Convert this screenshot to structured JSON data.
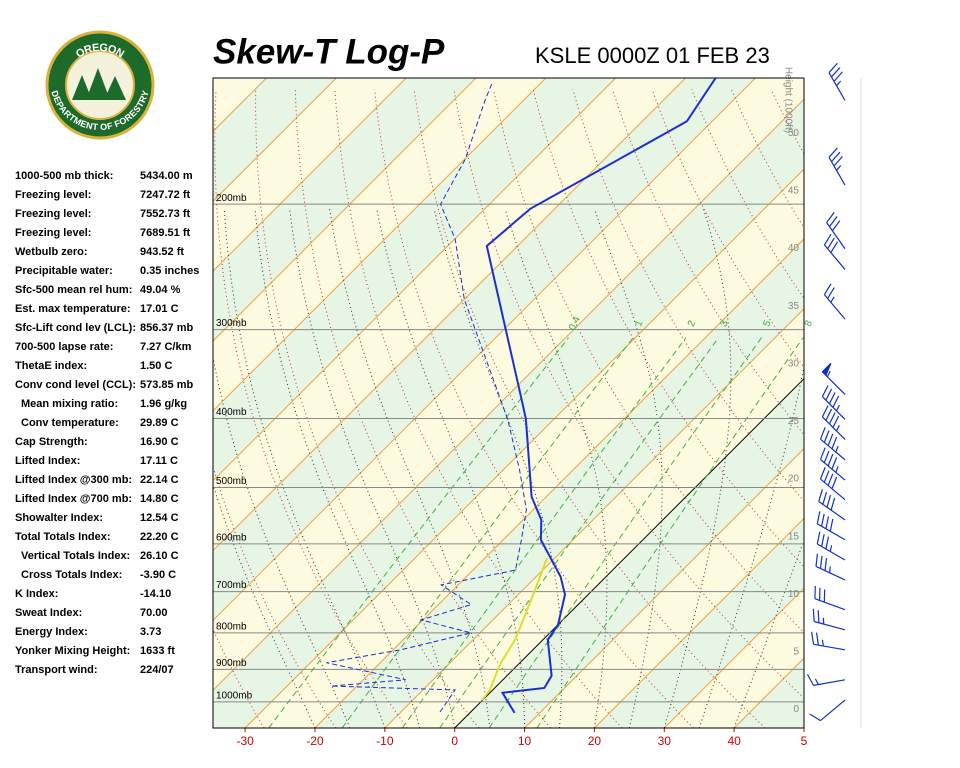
{
  "logo": {
    "top": "OREGON",
    "bottom": "DEPARTMENT OF FORESTRY"
  },
  "stats": [
    {
      "label": "1000-500 mb thick:",
      "value": "5434.00 m"
    },
    {
      "label": "Freezing level:",
      "value": "7247.72 ft"
    },
    {
      "label": "Freezing level:",
      "value": "7552.73 ft"
    },
    {
      "label": "Freezing level:",
      "value": "7689.51 ft"
    },
    {
      "label": "Wetbulb zero:",
      "value": "943.52 ft"
    },
    {
      "label": "Precipitable water:",
      "value": "0.35 inches"
    },
    {
      "label": "Sfc-500 mean rel hum:",
      "value": "49.04 %"
    },
    {
      "label": "Est. max temperature:",
      "value": "17.01 C"
    },
    {
      "label": "Sfc-Lift cond lev (LCL):",
      "value": "856.37 mb"
    },
    {
      "label": "700-500 lapse rate:",
      "value": "7.27 C/km"
    },
    {
      "label": "ThetaE index:",
      "value": "1.50 C"
    },
    {
      "label": "Conv cond level (CCL):",
      "value": "573.85 mb"
    },
    {
      "label": "Mean mixing ratio:",
      "value": "1.96 g/kg",
      "indent": true
    },
    {
      "label": "Conv temperature:",
      "value": "29.89 C",
      "indent": true
    },
    {
      "label": "Cap Strength:",
      "value": "16.90 C"
    },
    {
      "label": "Lifted Index:",
      "value": "17.11 C"
    },
    {
      "label": "Lifted Index @300 mb:",
      "value": "22.14 C"
    },
    {
      "label": "Lifted Index @700 mb:",
      "value": "14.80 C"
    },
    {
      "label": "Showalter Index:",
      "value": "12.54 C"
    },
    {
      "label": "Total Totals Index:",
      "value": "22.20 C"
    },
    {
      "label": "Vertical Totals Index:",
      "value": "26.10 C",
      "indent": true
    },
    {
      "label": "Cross Totals Index:",
      "value": "-3.90 C",
      "indent": true
    },
    {
      "label": "K Index:",
      "value": "-14.10"
    },
    {
      "label": "Sweat Index:",
      "value": "70.00"
    },
    {
      "label": "Energy Index:",
      "value": "3.73"
    },
    {
      "label": "Yonker Mixing Height:",
      "value": "1633 ft"
    },
    {
      "label": "Transport wind:",
      "value": "224/07"
    }
  ],
  "chart_data": {
    "type": "skewt",
    "title": "Skew-T Log-P",
    "subtitle": "KSLE 0000Z 01 FEB 23",
    "xlim": [
      -34.6,
      50
    ],
    "xticks": [
      -30,
      -20,
      -10,
      0,
      10,
      20,
      30,
      40,
      {
        "value": 50,
        "label": "5"
      }
    ],
    "ylim": [
      1088,
      133
    ],
    "log_scale": true,
    "yticks": [
      {
        "value": 200,
        "label": "200mb"
      },
      {
        "value": 300,
        "label": "300mb"
      },
      {
        "value": 400,
        "label": "400mb"
      },
      {
        "value": 500,
        "label": "500mb"
      },
      {
        "value": 600,
        "label": "600mb"
      },
      {
        "value": 700,
        "label": "700mb"
      },
      {
        "value": 800,
        "label": "800mb"
      },
      {
        "value": 900,
        "label": "900mb"
      },
      {
        "value": 1000,
        "label": "1000mb"
      }
    ],
    "height_axis": {
      "label": "Height (1000ft)",
      "lim": [
        -1.6,
        54.8
      ],
      "ticks": [
        0,
        5,
        10,
        15,
        20,
        25,
        30,
        35,
        40,
        45,
        50
      ]
    },
    "mixing_ratio_labels": [
      0.4,
      1,
      2,
      3,
      5,
      8
    ],
    "series": [
      {
        "color": "#1a2fd0",
        "dash": false,
        "pressure": [
          1036,
          971,
          956,
          919,
          818,
          779,
          707,
          667,
          592,
          555,
          515,
          401,
          382,
          229,
          203,
          153,
          133
        ],
        "values": [
          6.4,
          1.8,
          7.1,
          6.4,
          0.7,
          0,
          -3.3,
          -6.5,
          -14.6,
          -17.4,
          -22.1,
          -34.0,
          -36.6,
          -64.4,
          -63.5,
          -53.6,
          -55.7
        ]
      },
      {
        "color": "#1a2fd0",
        "dash": true,
        "pressure": [
          1033,
          962,
          950,
          931,
          881,
          845,
          800,
          767,
          730,
          685,
          653,
          592,
          537,
          472,
          401,
          272,
          224,
          200,
          173,
          143,
          135
        ],
        "values": [
          -4.4,
          -5.4,
          -23.7,
          -13.9,
          -27.7,
          -18.9,
          -11.3,
          -20.3,
          -15.3,
          -22.4,
          -13.9,
          -17.4,
          -21.0,
          -27.7,
          -36.6,
          -60.0,
          -69.9,
          -77.0,
          -79.9,
          -85.5,
          -87.0
        ]
      },
      {
        "color": "#e0dc30",
        "dash": false,
        "pressure": [
          994,
          962,
          887,
          818,
          755,
          698,
          628
        ],
        "values": [
          -0.1,
          -0.4,
          -2.6,
          -4.0,
          -6.1,
          -8.2,
          -11.1
        ]
      }
    ],
    "winds": {
      "color": "#1030c8",
      "pressure": [
        143,
        188,
        231,
        247,
        290,
        370,
        401,
        428,
        457,
        488,
        520,
        555,
        592,
        632,
        674,
        742,
        792,
        845,
        931,
        994
      ],
      "direction": [
        330,
        330,
        325,
        320,
        320,
        315,
        315,
        315,
        310,
        310,
        310,
        305,
        300,
        300,
        295,
        290,
        285,
        280,
        260,
        230
      ],
      "speed": [
        35,
        35,
        30,
        30,
        25,
        55,
        45,
        45,
        45,
        45,
        40,
        40,
        40,
        35,
        35,
        30,
        25,
        25,
        15,
        10
      ]
    }
  }
}
